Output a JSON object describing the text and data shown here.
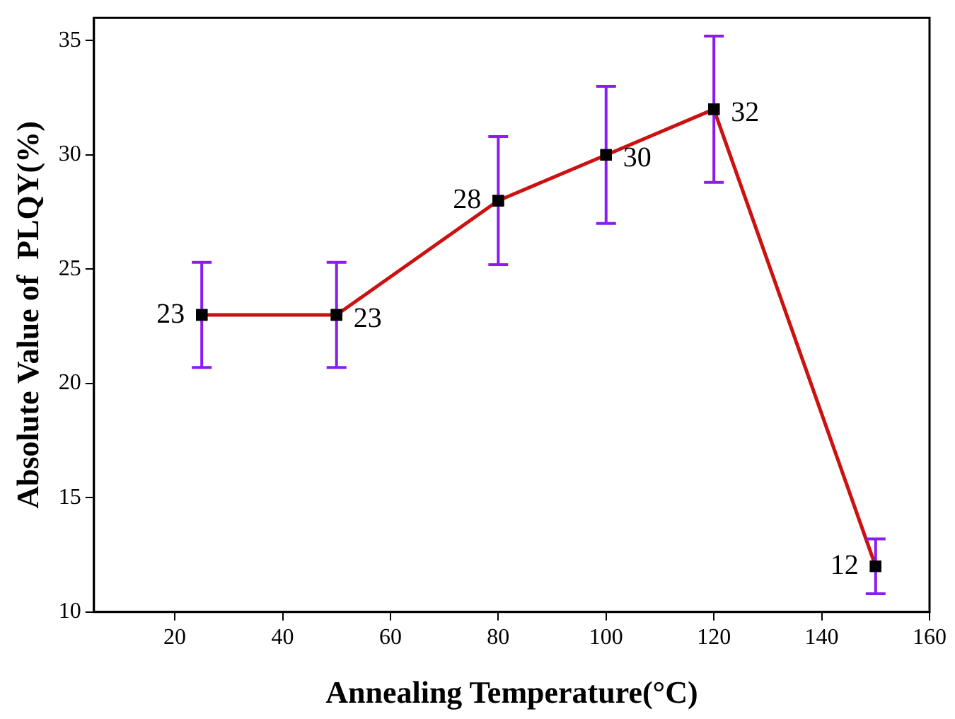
{
  "chart_data": {
    "type": "line",
    "xlabel": "Annealing Temperature(°C)",
    "ylabel": "Absolute Value of  PLQY(%)",
    "x": [
      25,
      50,
      80,
      100,
      120,
      150
    ],
    "series": [
      {
        "color": "#cc1111",
        "values": [
          23,
          23,
          28,
          30,
          32,
          12
        ],
        "errors": [
          2.3,
          2.3,
          2.8,
          3,
          3.2,
          1.2
        ]
      }
    ],
    "xlim": [
      5,
      160
    ],
    "xticks": [
      20,
      40,
      60,
      80,
      100,
      120,
      140,
      160
    ],
    "ylim": [
      10,
      36
    ],
    "yticks": [
      10,
      15,
      20,
      25,
      30,
      35
    ],
    "data_labels": true,
    "marker": "square",
    "line_style": "solid",
    "grid": false,
    "legend": false
  }
}
